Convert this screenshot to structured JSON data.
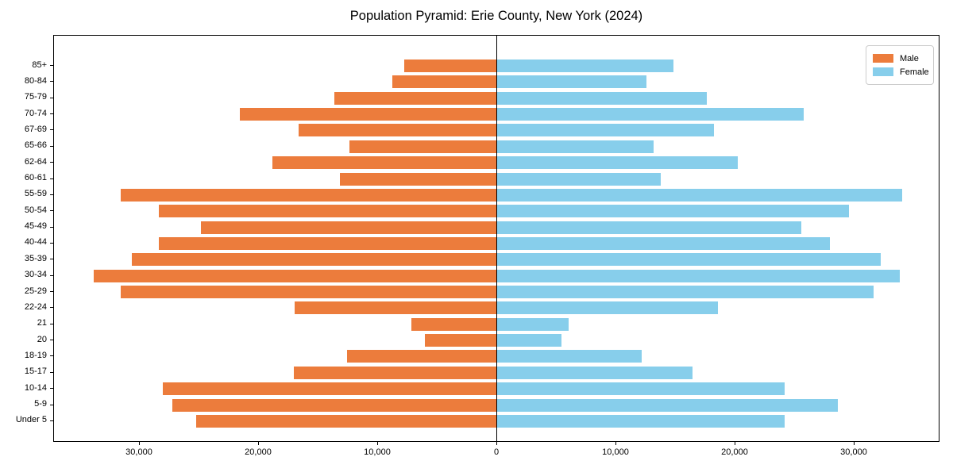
{
  "title": "Population Pyramid: Erie County, New York (2024)",
  "legend": {
    "male": "Male",
    "female": "Female"
  },
  "colors": {
    "male": "#ec7c3c",
    "female": "#87ceeb",
    "axis": "#000000",
    "legend_border": "#cccccc"
  },
  "chart_data": {
    "type": "bar",
    "subtype": "population-pyramid",
    "orientation": "horizontal",
    "title": "Population Pyramid: Erie County, New York (2024)",
    "categories": [
      "85+",
      "80-84",
      "75-79",
      "70-74",
      "67-69",
      "65-66",
      "62-64",
      "60-61",
      "55-59",
      "50-54",
      "45-49",
      "40-44",
      "35-39",
      "30-34",
      "25-29",
      "22-24",
      "21",
      "20",
      "18-19",
      "15-17",
      "10-14",
      "5-9",
      "Under 5"
    ],
    "series": [
      {
        "name": "Male",
        "side": "left",
        "color": "#ec7c3c",
        "values": [
          7800,
          8800,
          13700,
          21600,
          16700,
          12400,
          18900,
          13200,
          31600,
          28400,
          24900,
          28400,
          30700,
          33900,
          31600,
          17000,
          7200,
          6100,
          12600,
          17100,
          28100,
          27300,
          25300
        ]
      },
      {
        "name": "Female",
        "side": "right",
        "color": "#87ceeb",
        "values": [
          14800,
          12500,
          17600,
          25700,
          18200,
          13100,
          20200,
          13700,
          34000,
          29500,
          25500,
          27900,
          32200,
          33800,
          31600,
          18500,
          6000,
          5400,
          12100,
          16400,
          24100,
          28600,
          24100
        ]
      }
    ],
    "xlim": [
      -37200,
      37200
    ],
    "x_tick_values": [
      -30000,
      -20000,
      -10000,
      0,
      10000,
      20000,
      30000
    ],
    "x_tick_labels": [
      "30,000",
      "20,000",
      "10,000",
      "0",
      "10,000",
      "20,000",
      "30,000"
    ],
    "xlabel": "",
    "ylabel": "",
    "grid": false,
    "legend_position": "upper right",
    "legend_entries": [
      "Male",
      "Female"
    ]
  }
}
